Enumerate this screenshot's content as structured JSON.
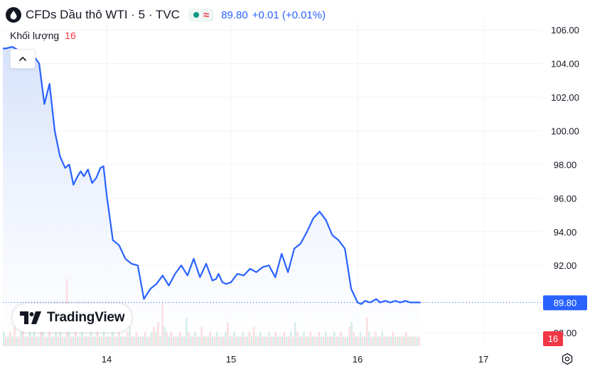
{
  "header": {
    "title": "CFDs Dầu thô WTI · 5 · TVC",
    "price": "89.80",
    "change": "+0.01 (+0.01%)",
    "approx_symbol": "≈"
  },
  "volume_legend": {
    "label": "Khối lượng",
    "value": "16"
  },
  "watermark": {
    "text": "TradingView"
  },
  "colors": {
    "line": "#2962ff",
    "area_top": "#dce6fb",
    "volume_up": "#089981",
    "volume_down": "#f23645",
    "price_badge": "#2962ff",
    "volume_badge": "#f23645"
  },
  "icons": [
    "oil-drop-icon",
    "market-open-dot-icon",
    "approx-icon",
    "chevron-up-icon",
    "tradingview-logo-icon",
    "settings-icon"
  ],
  "chart_data": {
    "type": "area",
    "x_labels": [
      "14",
      "15",
      "16",
      "17"
    ],
    "y_ticks": [
      "106.00",
      "104.00",
      "102.00",
      "100.00",
      "98.00",
      "96.00",
      "94.00",
      "92.00",
      "88.00"
    ],
    "ylim": [
      87.2,
      106.6
    ],
    "last_price": 89.8,
    "last_price_label": "89.80",
    "volume_label": "16",
    "series": [
      {
        "x": [
          0,
          0.03,
          0.09,
          0.15,
          0.2,
          0.28,
          0.35,
          0.4,
          0.45,
          0.5,
          0.55,
          0.6,
          0.64,
          0.68,
          0.72,
          0.75,
          0.78,
          0.82,
          0.86,
          0.9,
          0.94,
          0.97,
          1.0,
          1.05,
          1.1,
          1.15,
          1.2,
          1.25,
          1.3,
          1.35,
          1.4,
          1.45,
          1.5,
          1.55,
          1.6,
          1.65,
          1.7,
          1.75,
          1.8,
          1.85,
          1.88,
          1.9,
          1.93,
          1.96,
          2.0,
          2.05,
          2.1,
          2.15,
          2.2,
          2.25,
          2.3,
          2.35,
          2.4,
          2.45,
          2.5,
          2.55,
          2.6,
          2.65,
          2.7,
          2.75,
          2.8,
          2.85,
          2.9,
          2.95,
          3.0,
          3.03,
          3.06,
          3.1,
          3.15,
          3.18,
          3.22,
          3.26,
          3.3,
          3.34,
          3.38,
          3.42,
          3.46,
          3.5
        ],
        "y": [
          104.9,
          104.9,
          105.0,
          104.8,
          104.1,
          104.6,
          104.0,
          101.6,
          102.8,
          100.0,
          98.5,
          97.8,
          98.0,
          96.8,
          97.3,
          97.6,
          97.3,
          97.7,
          96.9,
          97.2,
          97.8,
          97.9,
          96.2,
          93.5,
          93.2,
          92.4,
          92.1,
          92.0,
          90.0,
          90.6,
          90.9,
          91.4,
          90.8,
          91.5,
          92.0,
          91.4,
          92.4,
          91.3,
          92.1,
          91.1,
          91.2,
          91.5,
          91.0,
          90.9,
          91.0,
          91.5,
          91.4,
          91.8,
          91.6,
          91.9,
          92.0,
          91.3,
          92.7,
          91.6,
          93.0,
          93.3,
          94.0,
          94.8,
          95.2,
          94.7,
          93.8,
          93.5,
          93.0,
          90.6,
          89.8,
          89.7,
          89.9,
          89.8,
          90.0,
          89.8,
          89.9,
          89.8,
          89.9,
          89.8,
          89.9,
          89.8,
          89.8,
          89.8
        ]
      }
    ],
    "volume": {
      "up_color": "#089981",
      "down_color": "#f23645",
      "values": [
        3,
        2,
        2,
        3,
        2,
        4,
        2,
        2,
        3,
        4,
        2,
        2,
        3,
        2,
        3,
        2,
        2,
        5,
        3,
        2,
        2,
        3,
        2,
        2,
        9,
        2,
        3,
        2,
        2,
        14,
        3,
        2,
        2,
        3,
        2,
        2,
        3,
        2,
        2,
        2,
        3,
        2,
        2,
        3,
        2,
        2,
        3,
        2,
        2,
        2,
        3,
        2,
        2,
        3,
        2,
        2,
        2,
        3,
        4,
        2,
        2,
        3,
        2,
        2,
        2,
        3,
        2,
        2,
        3,
        4,
        3,
        5,
        2,
        9,
        4,
        3,
        2,
        3,
        2,
        2,
        2,
        3,
        2,
        2,
        6,
        3,
        2,
        2,
        3,
        2,
        2,
        4,
        2,
        2,
        2,
        3,
        2,
        2,
        3,
        2,
        2,
        2,
        3,
        5,
        2,
        2,
        3,
        2,
        2,
        2,
        3,
        2,
        2,
        3,
        2,
        4,
        2,
        2,
        3,
        2,
        2,
        2,
        3,
        2,
        2,
        3,
        2,
        2,
        2,
        3,
        2,
        2,
        3,
        2,
        5,
        3,
        2,
        2,
        3,
        2,
        2,
        3,
        2,
        2,
        2,
        3,
        2,
        2,
        3,
        2,
        2,
        2,
        3,
        2,
        2,
        3,
        2,
        2,
        2,
        4,
        5,
        3,
        2,
        2,
        3,
        2,
        2,
        6,
        3,
        2,
        2,
        3,
        2,
        2,
        3,
        2,
        2,
        2,
        2,
        3,
        2,
        2,
        2,
        2,
        2,
        3,
        2,
        2,
        2,
        2,
        2,
        2
      ]
    }
  }
}
